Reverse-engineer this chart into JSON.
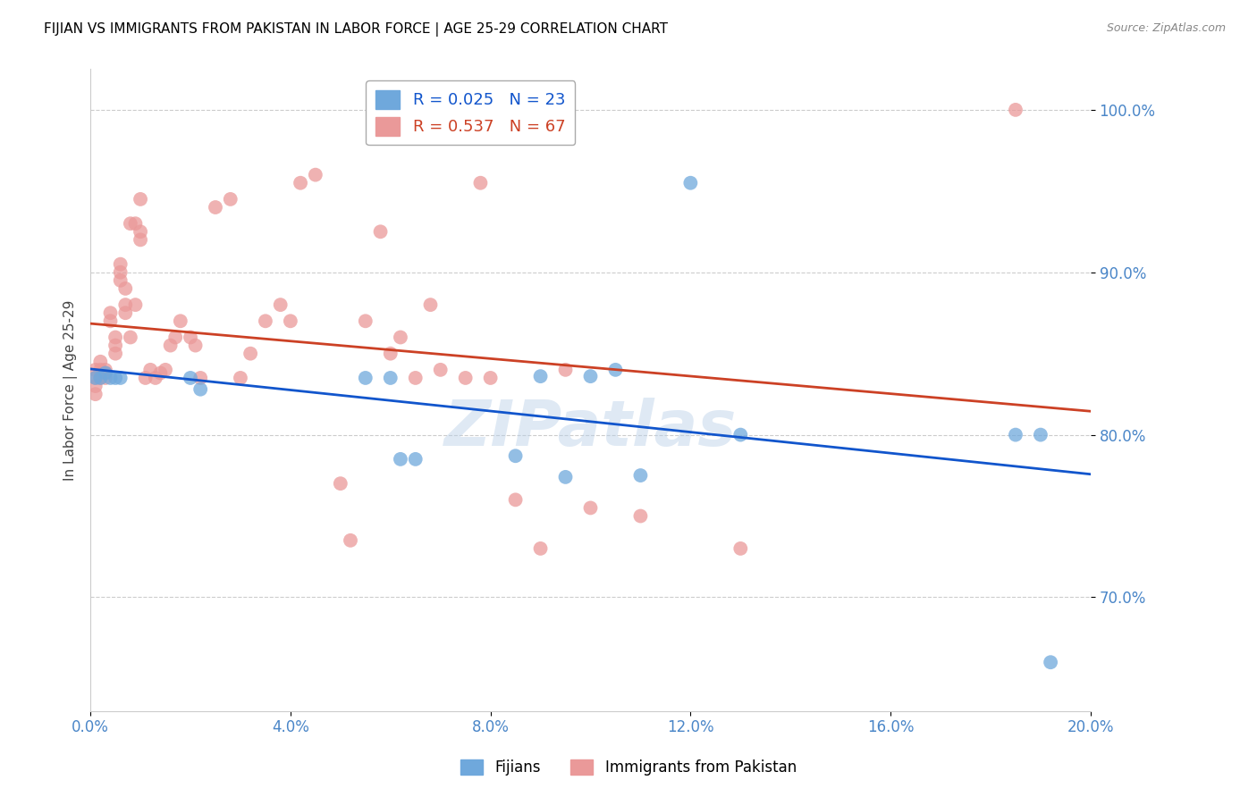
{
  "title": "FIJIAN VS IMMIGRANTS FROM PAKISTAN IN LABOR FORCE | AGE 25-29 CORRELATION CHART",
  "source": "Source: ZipAtlas.com",
  "ylabel": "In Labor Force | Age 25-29",
  "xlim": [
    0.0,
    0.2
  ],
  "ylim": [
    0.63,
    1.025
  ],
  "xticks": [
    0.0,
    0.04,
    0.08,
    0.12,
    0.16,
    0.2
  ],
  "yticks": [
    0.7,
    0.8,
    0.9,
    1.0
  ],
  "ytick_labels": [
    "70.0%",
    "80.0%",
    "90.0%",
    "100.0%"
  ],
  "xtick_labels": [
    "0.0%",
    "4.0%",
    "8.0%",
    "12.0%",
    "16.0%",
    "20.0%"
  ],
  "watermark": "ZIPatlas",
  "blue_R": 0.025,
  "blue_N": 23,
  "pink_R": 0.537,
  "pink_N": 67,
  "blue_color": "#6fa8dc",
  "pink_color": "#ea9999",
  "blue_line_color": "#1155cc",
  "pink_line_color": "#cc4125",
  "grid_color": "#cccccc",
  "axis_color": "#4a86c8",
  "title_color": "#000000",
  "blue_scatter_x": [
    0.001,
    0.002,
    0.003,
    0.004,
    0.005,
    0.006,
    0.02,
    0.022,
    0.055,
    0.085,
    0.09,
    0.095,
    0.1,
    0.105,
    0.11,
    0.12,
    0.13,
    0.185,
    0.19,
    0.192,
    0.06,
    0.062,
    0.065
  ],
  "blue_scatter_y": [
    0.835,
    0.835,
    0.838,
    0.835,
    0.835,
    0.835,
    0.835,
    0.828,
    0.835,
    0.787,
    0.836,
    0.774,
    0.836,
    0.84,
    0.775,
    0.955,
    0.8,
    0.8,
    0.8,
    0.66,
    0.835,
    0.785,
    0.785
  ],
  "pink_scatter_x": [
    0.001,
    0.001,
    0.001,
    0.001,
    0.002,
    0.002,
    0.002,
    0.003,
    0.003,
    0.003,
    0.004,
    0.004,
    0.005,
    0.005,
    0.005,
    0.006,
    0.006,
    0.006,
    0.007,
    0.007,
    0.007,
    0.008,
    0.008,
    0.009,
    0.009,
    0.01,
    0.01,
    0.01,
    0.011,
    0.012,
    0.013,
    0.014,
    0.015,
    0.016,
    0.017,
    0.018,
    0.02,
    0.021,
    0.022,
    0.025,
    0.028,
    0.03,
    0.032,
    0.035,
    0.038,
    0.04,
    0.042,
    0.045,
    0.05,
    0.052,
    0.055,
    0.058,
    0.06,
    0.062,
    0.065,
    0.068,
    0.07,
    0.075,
    0.078,
    0.08,
    0.085,
    0.09,
    0.095,
    0.1,
    0.11,
    0.13,
    0.185
  ],
  "pink_scatter_y": [
    0.835,
    0.84,
    0.83,
    0.825,
    0.845,
    0.84,
    0.835,
    0.84,
    0.835,
    0.838,
    0.875,
    0.87,
    0.86,
    0.855,
    0.85,
    0.905,
    0.9,
    0.895,
    0.89,
    0.875,
    0.88,
    0.86,
    0.93,
    0.88,
    0.93,
    0.925,
    0.92,
    0.945,
    0.835,
    0.84,
    0.835,
    0.838,
    0.84,
    0.855,
    0.86,
    0.87,
    0.86,
    0.855,
    0.835,
    0.94,
    0.945,
    0.835,
    0.85,
    0.87,
    0.88,
    0.87,
    0.955,
    0.96,
    0.77,
    0.735,
    0.87,
    0.925,
    0.85,
    0.86,
    0.835,
    0.88,
    0.84,
    0.835,
    0.955,
    0.835,
    0.76,
    0.73,
    0.84,
    0.755,
    0.75,
    0.73,
    1.0
  ],
  "legend_labels": [
    "Fijians",
    "Immigrants from Pakistan"
  ],
  "figsize": [
    14.06,
    8.92
  ],
  "dpi": 100
}
